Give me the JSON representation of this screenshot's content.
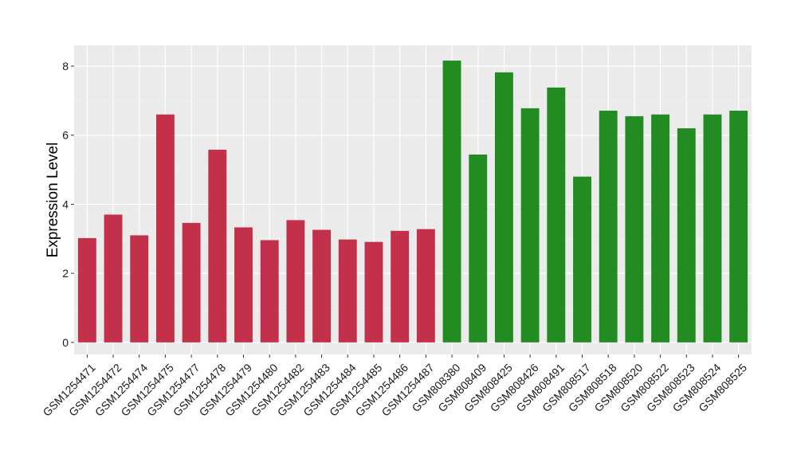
{
  "chart_data": {
    "type": "bar",
    "title": "",
    "xlabel": "",
    "ylabel": "Expression Level",
    "ylim": [
      -0.35,
      8.6
    ],
    "yticks": [
      0,
      2,
      4,
      6,
      8
    ],
    "grid": true,
    "legend": "none",
    "categories": [
      "GSM1254471",
      "GSM1254472",
      "GSM1254474",
      "GSM1254475",
      "GSM1254477",
      "GSM1254478",
      "GSM1254479",
      "GSM1254480",
      "GSM1254482",
      "GSM1254483",
      "GSM1254484",
      "GSM1254485",
      "GSM1254486",
      "GSM1254487",
      "GSM808380",
      "GSM808409",
      "GSM808425",
      "GSM808426",
      "GSM808491",
      "GSM808517",
      "GSM808518",
      "GSM808520",
      "GSM808522",
      "GSM808523",
      "GSM808524",
      "GSM808525"
    ],
    "values": [
      3.02,
      3.7,
      3.1,
      6.6,
      3.46,
      5.58,
      3.33,
      2.96,
      3.54,
      3.26,
      2.98,
      2.91,
      3.23,
      3.28,
      8.16,
      5.44,
      7.82,
      6.78,
      7.38,
      4.8,
      6.71,
      6.55,
      6.6,
      6.2,
      6.6,
      6.71
    ],
    "groups": [
      "red",
      "red",
      "red",
      "red",
      "red",
      "red",
      "red",
      "red",
      "red",
      "red",
      "red",
      "red",
      "red",
      "red",
      "green",
      "green",
      "green",
      "green",
      "green",
      "green",
      "green",
      "green",
      "green",
      "green",
      "green",
      "green"
    ],
    "colors": {
      "red": "#C3304A",
      "green": "#228B22",
      "panel": "#EBEBEB",
      "grid_major": "#FFFFFF",
      "grid_minor": "#F4F4F4"
    }
  }
}
